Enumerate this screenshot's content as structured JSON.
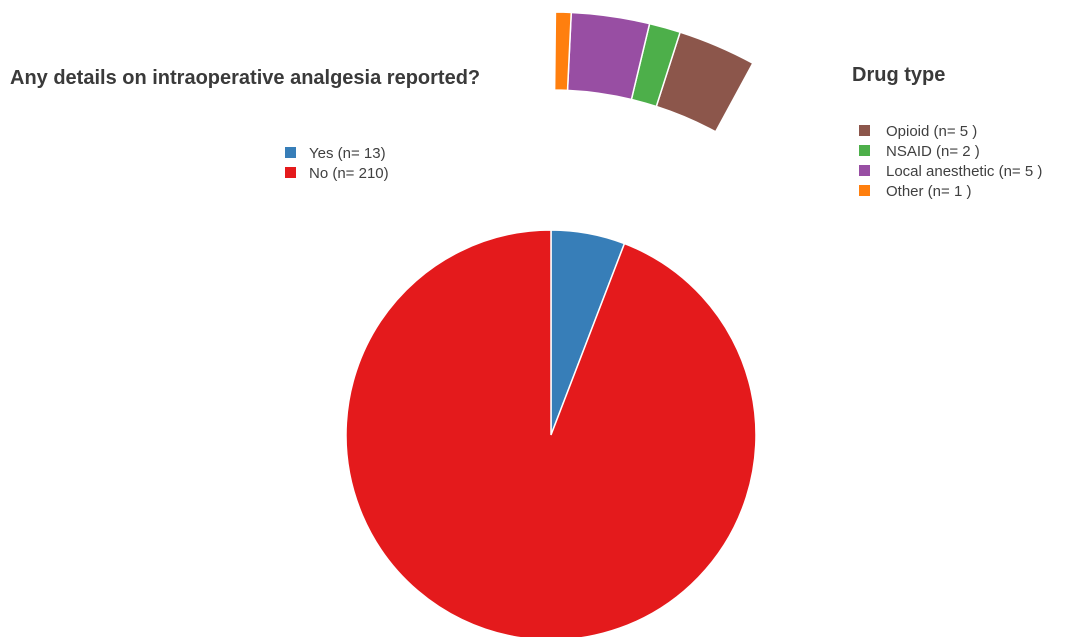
{
  "chart_data": [
    {
      "type": "pie",
      "title": "Any details on intraoperative analgesia reported?",
      "categories": [
        "Yes",
        "No"
      ],
      "values": [
        13,
        210
      ],
      "legend": [
        "Yes (n= 13)",
        "No (n= 210)"
      ],
      "colors": [
        "#377eb8",
        "#e41a1c"
      ],
      "legend_position": "top-center"
    },
    {
      "type": "pie",
      "title": "Drug type",
      "categories": [
        "Opioid",
        "NSAID",
        "Local anesthetic",
        "Other"
      ],
      "values": [
        5,
        2,
        5,
        1
      ],
      "legend": [
        "Opioid (n= 5 )",
        "NSAID (n= 2 )",
        "Local anesthetic (n= 5 )",
        "Other (n= 1 )"
      ],
      "colors": [
        "#8c564b",
        "#4daf4a",
        "#984ea3",
        "#ff7f0e"
      ],
      "legend_position": "top-right"
    }
  ]
}
